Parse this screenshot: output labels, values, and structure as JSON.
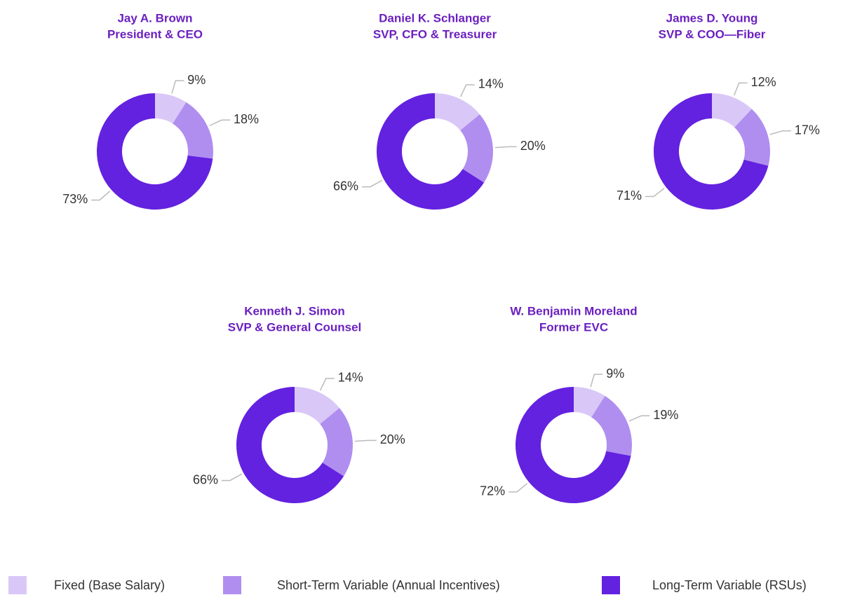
{
  "legend": {
    "categories": [
      "Fixed (Base Salary)",
      "Short-Term Variable (Annual Incentives)",
      "Long-Term Variable (RSUs)"
    ],
    "colors": [
      "#d9c8f7",
      "#b08ef0",
      "#6321e0"
    ]
  },
  "chart_data": [
    {
      "type": "pie",
      "title": "Jay A. Brown",
      "subtitle": "President & CEO",
      "values": [
        9,
        18,
        73
      ],
      "value_labels": [
        "9%",
        "18%",
        "73%"
      ]
    },
    {
      "type": "pie",
      "title": "Daniel K. Schlanger",
      "subtitle": "SVP, CFO & Treasurer",
      "values": [
        14,
        20,
        66
      ],
      "value_labels": [
        "14%",
        "20%",
        "66%"
      ]
    },
    {
      "type": "pie",
      "title": "James D. Young",
      "subtitle": "SVP & COO—Fiber",
      "values": [
        12,
        17,
        71
      ],
      "value_labels": [
        "12%",
        "17%",
        "71%"
      ]
    },
    {
      "type": "pie",
      "title": "Kenneth J. Simon",
      "subtitle": "SVP & General Counsel",
      "values": [
        14,
        20,
        66
      ],
      "value_labels": [
        "14%",
        "20%",
        "66%"
      ]
    },
    {
      "type": "pie",
      "title": "W. Benjamin Moreland",
      "subtitle": "Former EVC",
      "values": [
        9,
        19,
        72
      ],
      "value_labels": [
        "9%",
        "19%",
        "72%"
      ]
    }
  ]
}
